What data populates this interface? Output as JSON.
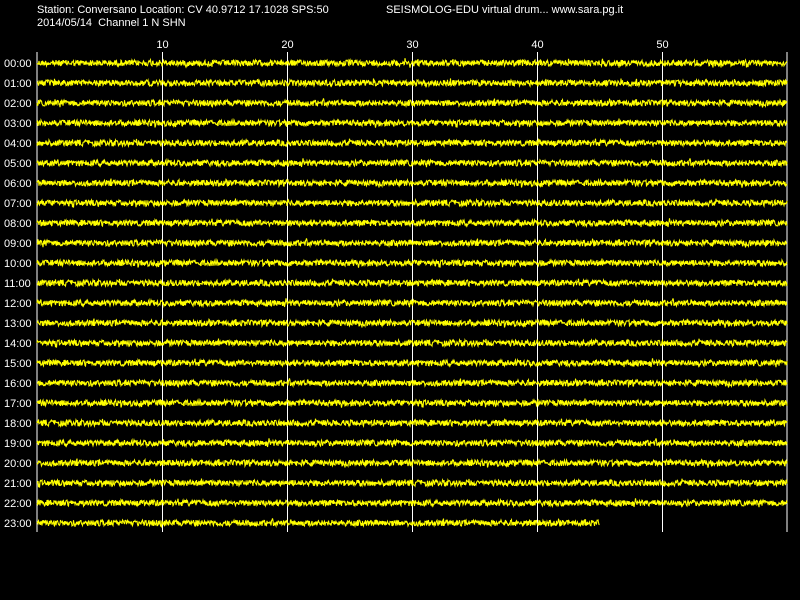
{
  "header": {
    "station_line": "Station: Conversano Location: CV 40.9712 17.1028 SPS:50",
    "date_line": "2014/05/14  Channel 1 N SHN",
    "title": "SEISMOLOG-EDU virtual drum... www.sara.pg.it"
  },
  "colors": {
    "background": "#000000",
    "trace": "#ffff00",
    "grid": "#ffffff",
    "text": "#ffffff"
  },
  "chart_data": {
    "type": "line",
    "xlim": [
      0,
      60
    ],
    "x_ticks": [
      10,
      20,
      30,
      40,
      50
    ],
    "grid": true,
    "rows": [
      "00:00",
      "01:00",
      "02:00",
      "03:00",
      "04:00",
      "05:00",
      "06:00",
      "07:00",
      "08:00",
      "09:00",
      "10:00",
      "11:00",
      "12:00",
      "13:00",
      "14:00",
      "15:00",
      "16:00",
      "17:00",
      "18:00",
      "19:00",
      "20:00",
      "21:00",
      "22:00",
      "23:00"
    ],
    "row_end_minute": [
      60,
      60,
      60,
      60,
      60,
      60,
      60,
      60,
      60,
      60,
      60,
      60,
      60,
      60,
      60,
      60,
      60,
      60,
      60,
      60,
      60,
      60,
      60,
      45
    ]
  }
}
